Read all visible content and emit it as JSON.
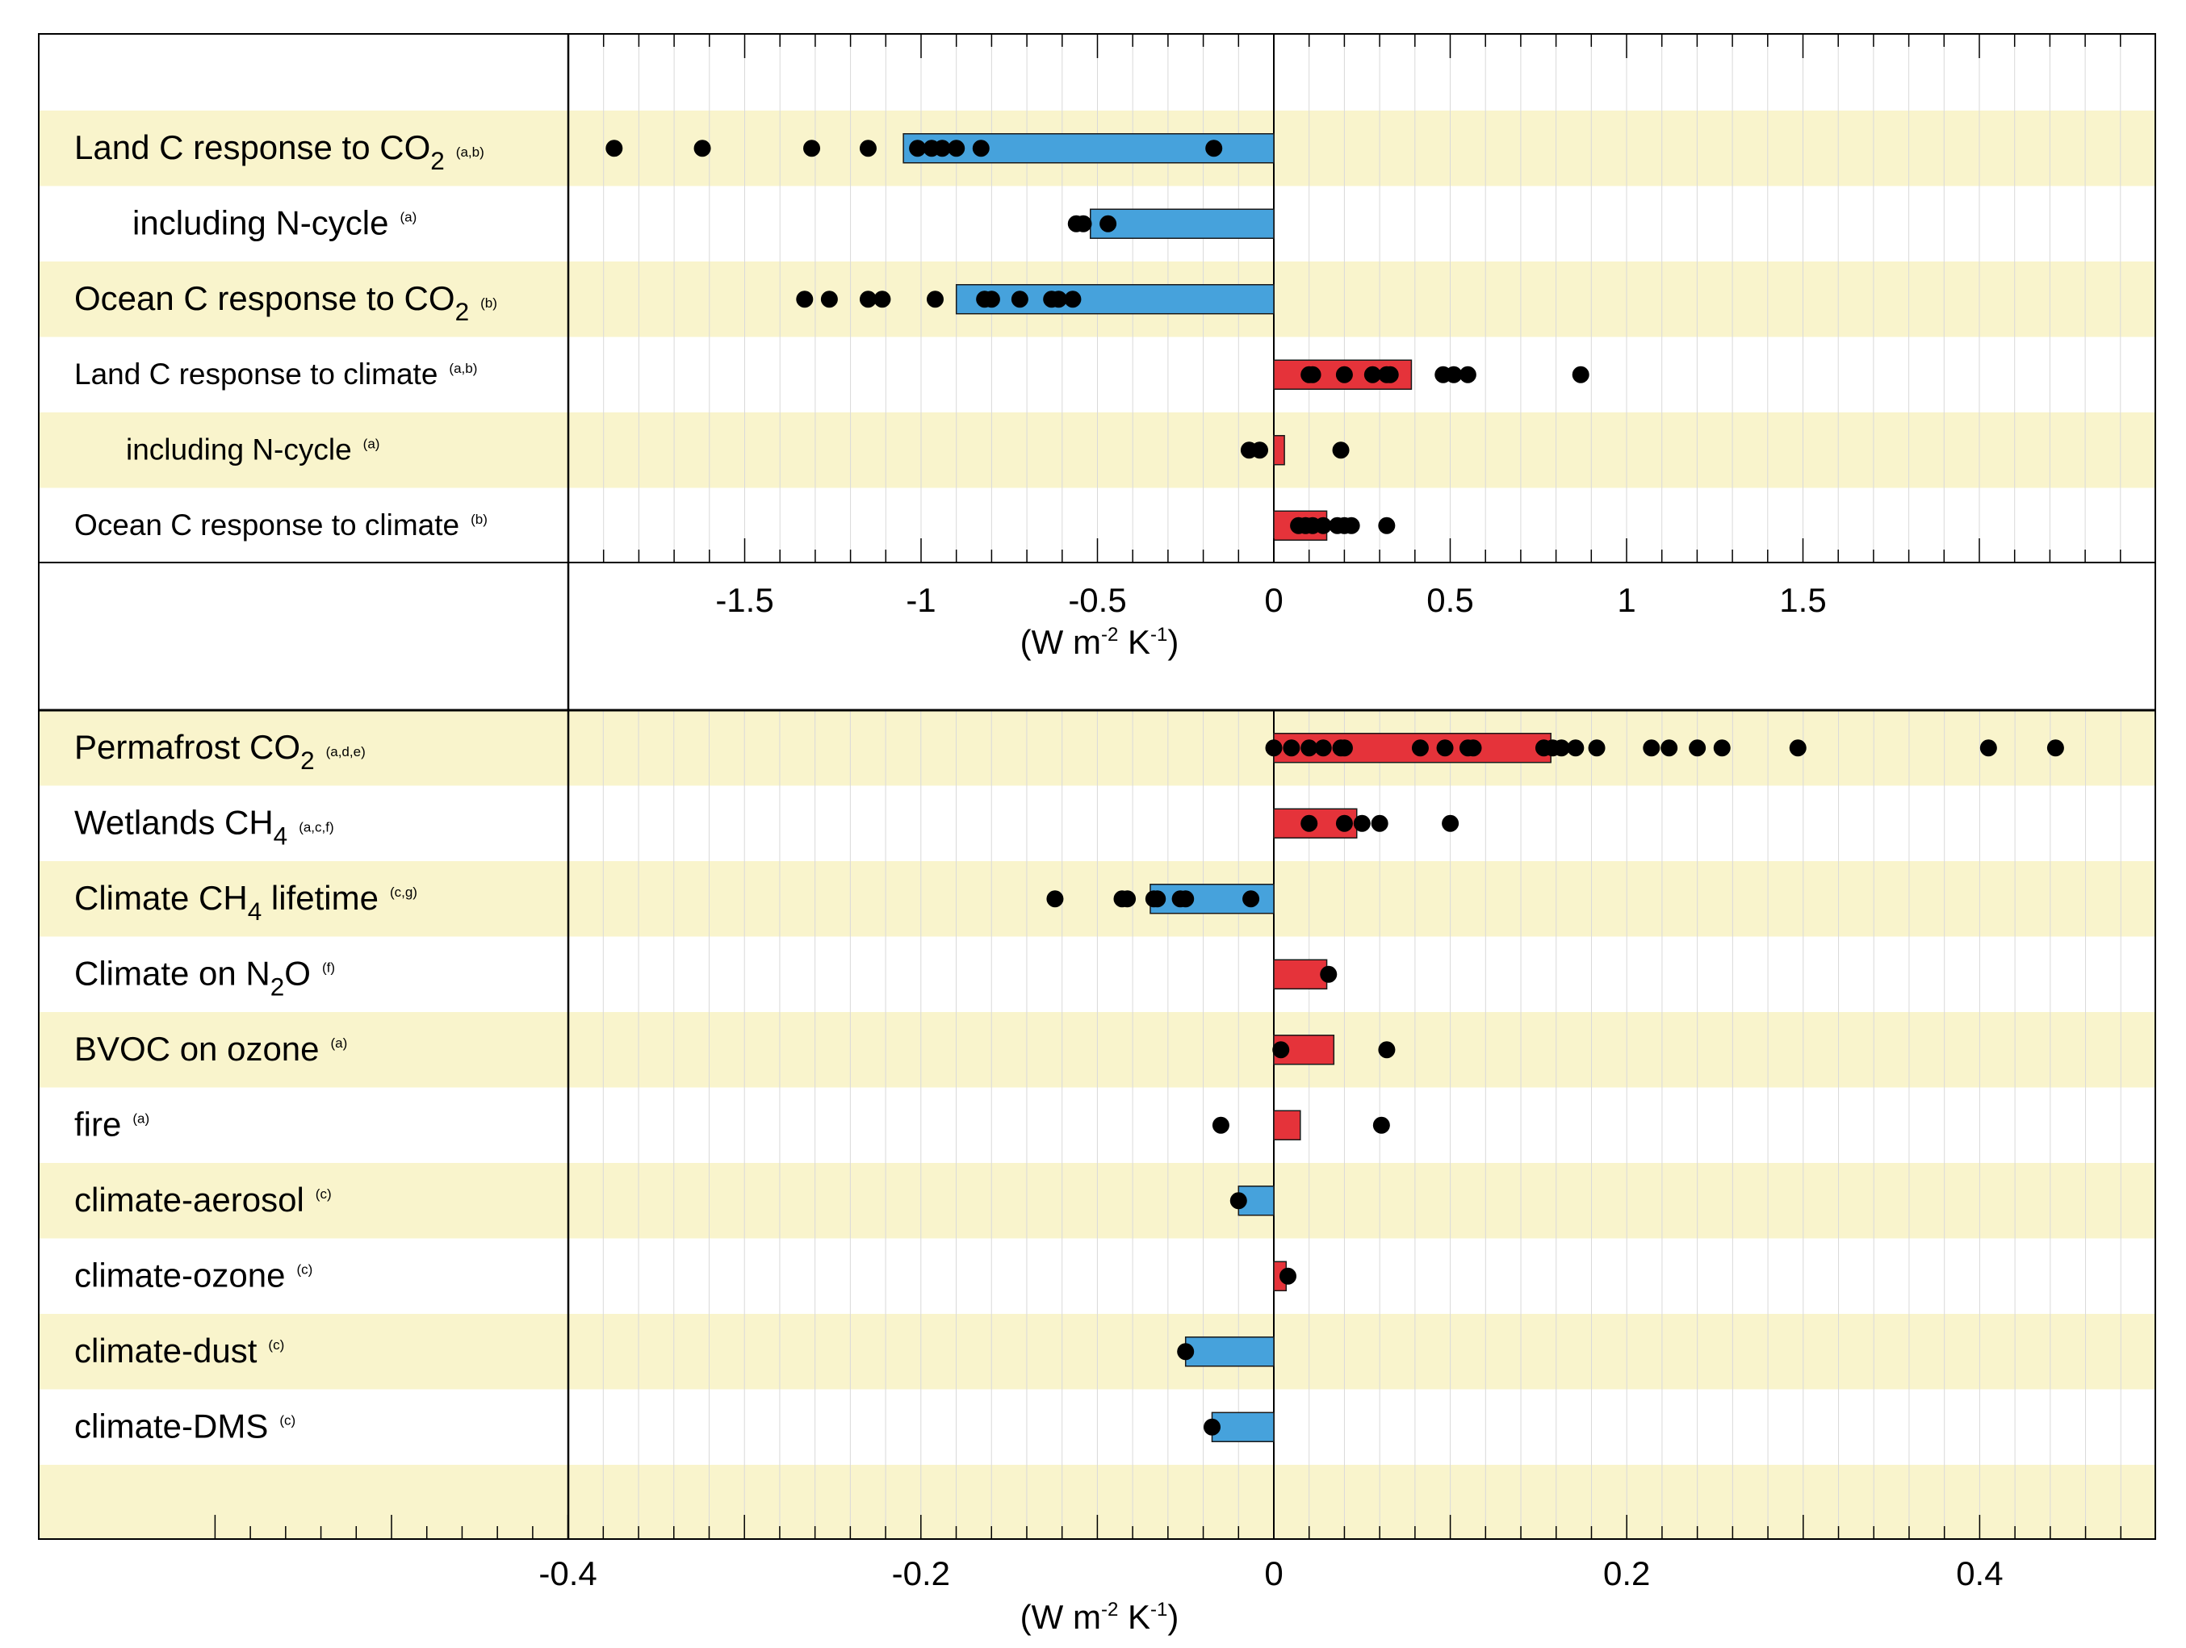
{
  "chart_data": [
    {
      "type": "bar",
      "xlabel": "(W m-2 K-1)",
      "xlabel_parts": [
        "(W m",
        "-2",
        " K",
        "-1",
        ")"
      ],
      "xlim": [
        -2.0,
        2.5
      ],
      "ticks": [
        -1.5,
        -1,
        -0.5,
        0,
        0.5,
        1,
        1.5
      ],
      "tick_labels": [
        "-1.5",
        "-1",
        "-0.5",
        "0",
        "0.5",
        "1",
        "1.5"
      ],
      "grid": true,
      "rows": [
        {
          "label": "Land C response to CO",
          "sub": "2",
          "after": "",
          "note": "(a,b)",
          "indent": 0,
          "size": "large",
          "value": -1.05,
          "color": "#46a2dc",
          "points": [
            -1.87,
            -1.62,
            -1.31,
            -1.15,
            -1.01,
            -0.97,
            -0.94,
            -0.9,
            -0.83,
            -0.17
          ]
        },
        {
          "label": "including N-cycle",
          "sub": "",
          "after": "",
          "note": "(a)",
          "indent": 1,
          "size": "large",
          "value": -0.52,
          "color": "#46a2dc",
          "points": [
            -0.56,
            -0.54,
            -0.47
          ]
        },
        {
          "label": "Ocean C response to CO",
          "sub": "2",
          "after": "",
          "note": "(b)",
          "indent": 0,
          "size": "large",
          "value": -0.9,
          "color": "#46a2dc",
          "points": [
            -1.33,
            -1.26,
            -1.15,
            -1.11,
            -0.96,
            -0.82,
            -0.8,
            -0.72,
            -0.63,
            -0.61,
            -0.57
          ]
        },
        {
          "label": "Land C response to climate",
          "sub": "",
          "after": "",
          "note": "(a,b)",
          "indent": 0,
          "size": "small",
          "value": 0.39,
          "color": "#e5333a",
          "points": [
            0.1,
            0.11,
            0.2,
            0.28,
            0.32,
            0.33,
            0.48,
            0.51,
            0.55,
            0.87
          ]
        },
        {
          "label": "including N-cycle",
          "sub": "",
          "after": "",
          "note": "(a)",
          "indent": 1,
          "size": "small",
          "value": 0.03,
          "color": "#e5333a",
          "points": [
            -0.07,
            -0.04,
            0.19
          ]
        },
        {
          "label": "Ocean C response to climate",
          "sub": "",
          "after": "",
          "note": "(b)",
          "indent": 0,
          "size": "small",
          "value": 0.15,
          "color": "#e5333a",
          "points": [
            0.07,
            0.09,
            0.11,
            0.14,
            0.18,
            0.2,
            0.22,
            0.32
          ]
        }
      ]
    },
    {
      "type": "bar",
      "xlabel": "(W m-2 K-1)",
      "xlabel_parts": [
        "(W m",
        "-2",
        " K",
        "-1",
        ")"
      ],
      "xlim": [
        -0.6,
        0.5
      ],
      "ticks": [
        -0.4,
        -0.2,
        0,
        0.2,
        0.4
      ],
      "tick_labels": [
        "-0.4",
        "-0.2",
        "0",
        "0.2",
        "0.4"
      ],
      "grid": true,
      "rows": [
        {
          "label": "Permafrost CO",
          "sub": "2",
          "after": "",
          "note": "(a,d,e)",
          "indent": 0,
          "size": "large",
          "value": 0.157,
          "color": "#e5333a",
          "points": [
            0.0,
            0.01,
            0.02,
            0.028,
            0.038,
            0.04,
            0.083,
            0.097,
            0.11,
            0.113,
            0.153,
            0.158,
            0.163,
            0.171,
            0.183,
            0.214,
            0.224,
            0.24,
            0.254,
            0.297,
            0.405,
            0.443
          ]
        },
        {
          "label": "Wetlands CH",
          "sub": "4",
          "after": "",
          "note": "(a,c,f)",
          "indent": 0,
          "size": "large",
          "value": 0.047,
          "color": "#e5333a",
          "points": [
            0.02,
            0.04,
            0.05,
            0.06,
            0.1
          ]
        },
        {
          "label": "Climate CH",
          "sub": "4",
          "after": " lifetime",
          "note": "(c,g)",
          "indent": 0,
          "size": "large",
          "value": -0.07,
          "color": "#46a2dc",
          "points": [
            -0.124,
            -0.086,
            -0.083,
            -0.068,
            -0.066,
            -0.053,
            -0.05,
            -0.013
          ]
        },
        {
          "label": "Climate on N",
          "sub": "2",
          "after": "O",
          "note": "(f)",
          "indent": 0,
          "size": "large",
          "value": 0.03,
          "color": "#e5333a",
          "points": [
            0.031
          ]
        },
        {
          "label": "BVOC on ozone",
          "sub": "",
          "after": "",
          "note": "(a)",
          "indent": 0,
          "size": "large",
          "value": 0.034,
          "color": "#e5333a",
          "points": [
            0.004,
            0.064
          ]
        },
        {
          "label": "fire",
          "sub": "",
          "after": "",
          "note": "(a)",
          "indent": 0,
          "size": "large",
          "value": 0.015,
          "color": "#e5333a",
          "points": [
            -0.03,
            0.061
          ]
        },
        {
          "label": "climate-aerosol",
          "sub": "",
          "after": "",
          "note": "(c)",
          "indent": 0,
          "size": "large",
          "value": -0.02,
          "color": "#46a2dc",
          "points": [
            -0.02
          ]
        },
        {
          "label": "climate-ozone",
          "sub": "",
          "after": "",
          "note": "(c)",
          "indent": 0,
          "size": "large",
          "value": 0.007,
          "color": "#e5333a",
          "points": [
            0.008
          ]
        },
        {
          "label": "climate-dust",
          "sub": "",
          "after": "",
          "note": "(c)",
          "indent": 0,
          "size": "large",
          "value": -0.05,
          "color": "#46a2dc",
          "points": [
            -0.05
          ]
        },
        {
          "label": "climate-DMS",
          "sub": "",
          "after": "",
          "note": "(c)",
          "indent": 0,
          "size": "large",
          "value": -0.035,
          "color": "#46a2dc",
          "points": [
            -0.035
          ]
        }
      ]
    }
  ],
  "colors": {
    "band": "#f9f4cc",
    "negative": "#46a2dc",
    "positive": "#e5333a",
    "point": "#000000"
  }
}
